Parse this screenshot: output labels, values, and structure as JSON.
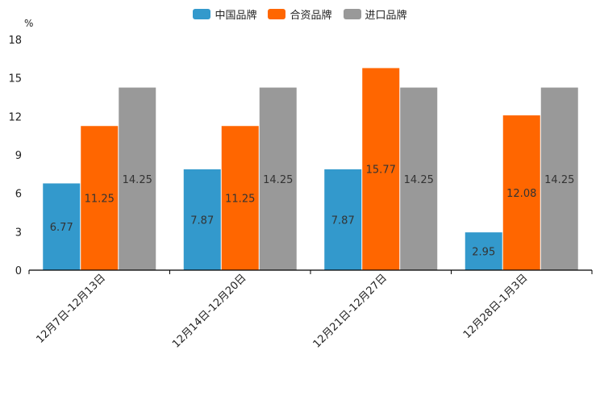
{
  "chart_data": {
    "type": "bar",
    "unit_label": "%",
    "categories": [
      "12月7日-12月13日",
      "12月14日-12月20日",
      "12月21日-12月27日",
      "12月28日-1月3日"
    ],
    "series": [
      {
        "name": "中国品牌",
        "color": "#3399cc",
        "values": [
          6.77,
          7.87,
          7.87,
          2.95
        ]
      },
      {
        "name": "合资品牌",
        "color": "#ff6600",
        "values": [
          11.25,
          11.25,
          15.77,
          12.08
        ]
      },
      {
        "name": "进口品牌",
        "color": "#999999",
        "values": [
          14.25,
          14.25,
          14.25,
          14.25
        ]
      }
    ],
    "ylim": [
      0,
      18
    ],
    "yticks": [
      0,
      3,
      6,
      9,
      12,
      15,
      18
    ],
    "legend_position": "top-center",
    "grid": false
  }
}
